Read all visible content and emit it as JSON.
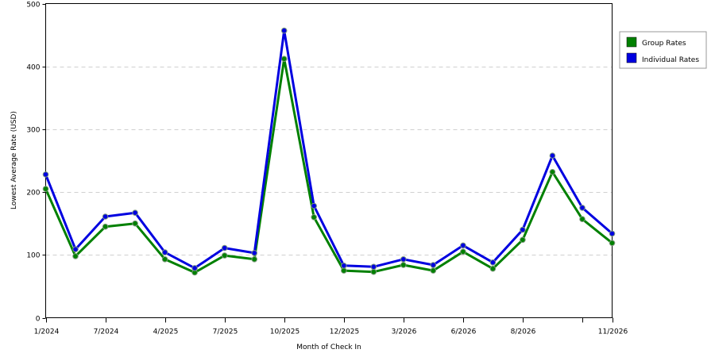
{
  "chart_data": {
    "type": "line",
    "title": "",
    "xlabel": "Month of Check In",
    "ylabel": "Lowest Average Rate (USD)",
    "ylim": [
      0,
      500
    ],
    "yticks": [
      0,
      100,
      200,
      300,
      400,
      500
    ],
    "x_tick_labels": [
      "1/2024",
      "7/2024",
      "4/2025",
      "7/2025",
      "10/2025",
      "12/2025",
      "3/2026",
      "6/2026",
      "8/2026",
      "",
      "11/2026"
    ],
    "x_tick_positions": [
      0,
      2,
      4,
      6,
      8,
      10,
      12,
      14,
      16,
      18,
      19
    ],
    "point_count": 20,
    "grid": "horizontal dashed",
    "legend": "right",
    "series": [
      {
        "name": "Group Rates",
        "color": "#008000",
        "values": [
          205,
          98,
          145,
          150,
          93,
          72,
          99,
          93,
          412,
          160,
          75,
          73,
          84,
          75,
          105,
          78,
          124,
          232,
          157,
          119
        ]
      },
      {
        "name": "Individual Rates",
        "color": "#0000e0",
        "values": [
          228,
          109,
          161,
          167,
          104,
          79,
          111,
          103,
          457,
          178,
          83,
          81,
          93,
          84,
          115,
          88,
          140,
          258,
          175,
          134
        ]
      }
    ]
  }
}
